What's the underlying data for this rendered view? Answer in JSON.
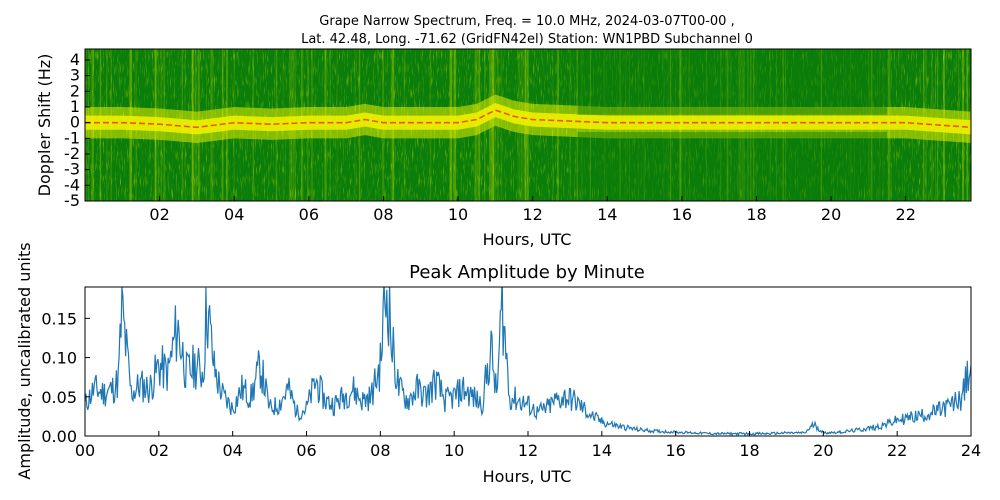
{
  "figure": {
    "title_line1": "Grape Narrow Spectrum, Freq. = 10.0 MHz, 2024-03-07T00-00 ,",
    "title_line2": "Lat.  42.48, Long. -71.62 (GridFN42el) Station: WN1PBD Subchannel 0"
  },
  "colors": {
    "background_green": "#0a7d0a",
    "mid_green": "#3f9a0f",
    "yellow": "#e8f000",
    "red": "#f03000",
    "line_blue": "#1f77b4"
  },
  "chart_data": [
    {
      "type": "heatmap",
      "xlabel": "Hours, UTC",
      "ylabel": "Doppler Shift (Hz)",
      "xlim": [
        0,
        23.75
      ],
      "ylim": [
        -5,
        4.7
      ],
      "x_ticks": [
        "02",
        "04",
        "06",
        "08",
        "10",
        "12",
        "14",
        "16",
        "18",
        "20",
        "22"
      ],
      "x_tick_values": [
        2,
        4,
        6,
        8,
        10,
        12,
        14,
        16,
        18,
        20,
        22
      ],
      "y_ticks": [
        "4",
        "3",
        "2",
        "1",
        "0",
        "-1",
        "-2",
        "-3",
        "-4",
        "-5"
      ],
      "y_tick_values": [
        4,
        3,
        2,
        1,
        0,
        -1,
        -2,
        -3,
        -4,
        -5
      ],
      "carrier_line": {
        "x": [
          0,
          1,
          2,
          3,
          4,
          5,
          6,
          7,
          7.5,
          8,
          9,
          10,
          10.5,
          11,
          11.5,
          12,
          13,
          14,
          16,
          18,
          20,
          22,
          23.75
        ],
        "doppler_hz": [
          0,
          0,
          -0.1,
          -0.3,
          0,
          -0.1,
          0,
          0,
          0.2,
          0,
          0,
          0,
          0.2,
          0.8,
          0.4,
          0.2,
          0.1,
          0,
          0,
          0,
          0,
          0,
          -0.3
        ]
      },
      "colormap": [
        "dark green (weak)",
        "yellow",
        "red (strong)"
      ],
      "grid": false
    },
    {
      "type": "line",
      "title": "Peak Amplitude by Minute",
      "xlabel": "Hours, UTC",
      "ylabel": "Amplitude, uncalibrated units",
      "xlim": [
        0,
        24
      ],
      "ylim": [
        0,
        0.19
      ],
      "x_ticks": [
        "00",
        "02",
        "04",
        "06",
        "08",
        "10",
        "12",
        "14",
        "16",
        "18",
        "20",
        "22",
        "24"
      ],
      "x_tick_values": [
        0,
        2,
        4,
        6,
        8,
        10,
        12,
        14,
        16,
        18,
        20,
        22,
        24
      ],
      "y_ticks": [
        "0.00",
        "0.05",
        "0.10",
        "0.15"
      ],
      "y_tick_values": [
        0,
        0.05,
        0.1,
        0.15
      ],
      "series": [
        {
          "x": [
            0,
            0.25,
            0.5,
            0.75,
            0.9,
            1,
            1.25,
            1.5,
            1.75,
            2,
            2.25,
            2.5,
            2.75,
            3,
            3.2,
            3.3,
            3.5,
            3.6,
            3.75,
            4,
            4.25,
            4.5,
            4.75,
            5,
            5.25,
            5.5,
            5.75,
            6,
            6.25,
            6.5,
            6.75,
            7,
            7.25,
            7.5,
            7.75,
            8,
            8.1,
            8.2,
            8.3,
            8.5,
            8.75,
            9,
            9.25,
            9.5,
            9.75,
            10,
            10.25,
            10.5,
            10.75,
            11,
            11.15,
            11.3,
            11.5,
            11.75,
            12,
            12.25,
            12.5,
            12.75,
            13,
            13.25,
            13.5,
            13.75,
            14,
            14.25,
            14.5,
            15,
            15.5,
            16,
            16.5,
            17,
            17.5,
            18,
            18.5,
            19,
            19.5,
            19.75,
            20,
            20.5,
            21,
            21.5,
            22,
            22.5,
            23,
            23.5,
            23.75,
            24
          ],
          "y": [
            0.04,
            0.06,
            0.055,
            0.06,
            0.07,
            0.16,
            0.055,
            0.065,
            0.06,
            0.09,
            0.08,
            0.14,
            0.08,
            0.09,
            0.08,
            0.17,
            0.085,
            0.07,
            0.05,
            0.035,
            0.06,
            0.05,
            0.09,
            0.035,
            0.04,
            0.06,
            0.03,
            0.035,
            0.07,
            0.045,
            0.04,
            0.05,
            0.06,
            0.045,
            0.05,
            0.09,
            0.16,
            0.19,
            0.12,
            0.06,
            0.045,
            0.06,
            0.05,
            0.07,
            0.045,
            0.05,
            0.06,
            0.05,
            0.04,
            0.11,
            0.05,
            0.17,
            0.05,
            0.045,
            0.04,
            0.03,
            0.035,
            0.045,
            0.05,
            0.045,
            0.035,
            0.025,
            0.018,
            0.015,
            0.012,
            0.008,
            0.006,
            0.005,
            0.004,
            0.003,
            0.003,
            0.003,
            0.003,
            0.004,
            0.004,
            0.015,
            0.004,
            0.005,
            0.008,
            0.012,
            0.02,
            0.025,
            0.03,
            0.04,
            0.05,
            0.09
          ]
        }
      ],
      "grid": false
    }
  ]
}
